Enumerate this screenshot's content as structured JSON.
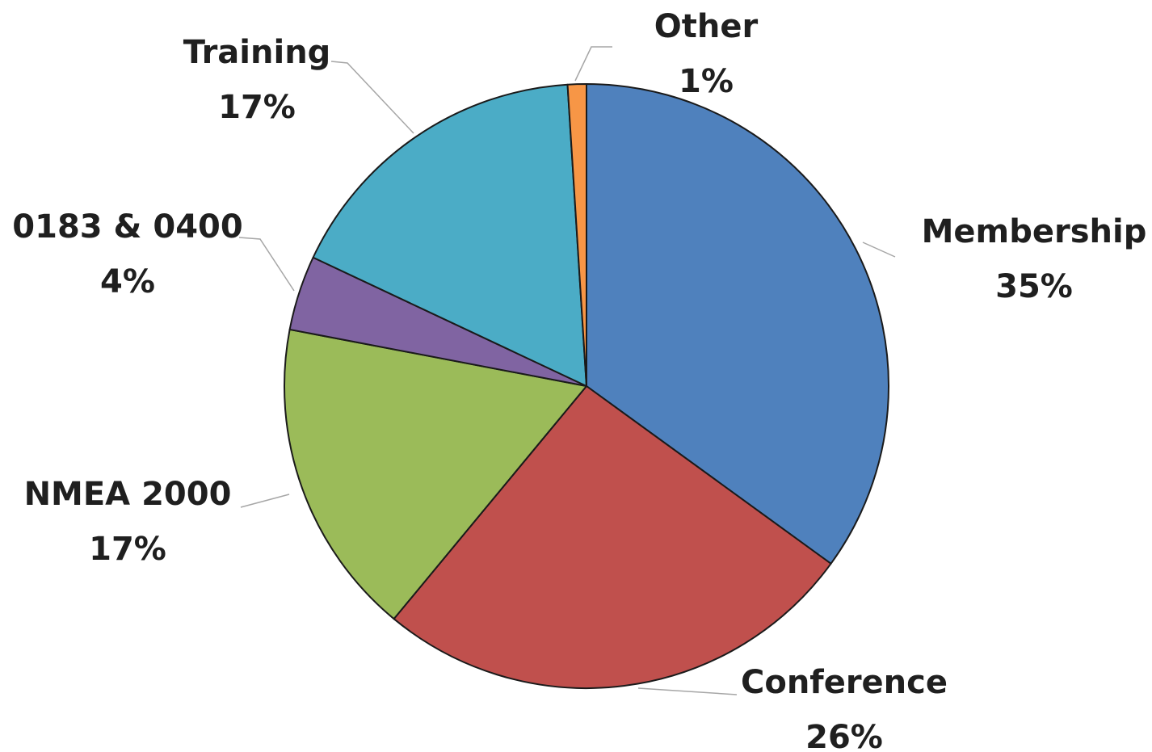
{
  "chart_data": {
    "type": "pie",
    "title": "",
    "start_angle_deg": 0,
    "direction": "clockwise",
    "slices": [
      {
        "label": "Membership",
        "percent_label": "35%",
        "value": 35,
        "color": "#4f81bd"
      },
      {
        "label": "Conference",
        "percent_label": "26%",
        "value": 26,
        "color": "#c0504d"
      },
      {
        "label": "NMEA 2000",
        "percent_label": "17%",
        "value": 17,
        "color": "#9bbb59"
      },
      {
        "label": "0183 & 0400",
        "percent_label": "4%",
        "value": 4,
        "color": "#8064a2"
      },
      {
        "label": "Training",
        "percent_label": "17%",
        "value": 17,
        "color": "#4bacc6"
      },
      {
        "label": "Other",
        "percent_label": "1%",
        "value": 1,
        "color": "#f79646"
      }
    ]
  }
}
